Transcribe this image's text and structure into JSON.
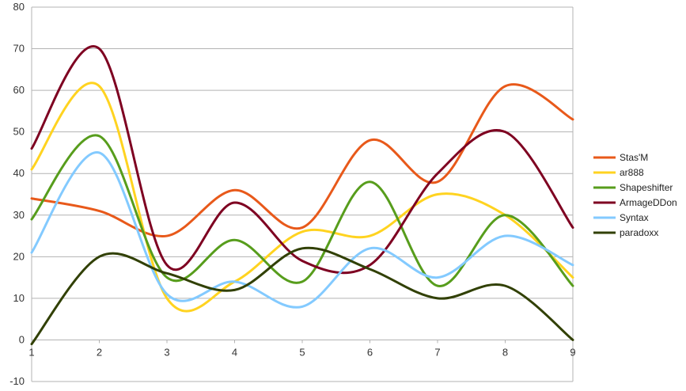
{
  "chart_data": {
    "type": "line",
    "x": [
      1,
      2,
      3,
      4,
      5,
      6,
      7,
      8,
      9
    ],
    "xlim": [
      1,
      9
    ],
    "ylim": [
      -10,
      80
    ],
    "y_ticks": [
      -10,
      0,
      10,
      20,
      30,
      40,
      50,
      60,
      70,
      80
    ],
    "x_ticks": [
      1,
      2,
      3,
      4,
      5,
      6,
      7,
      8,
      9
    ],
    "grid": "horizontal",
    "legend_position": "right",
    "smooth": true,
    "series": [
      {
        "name": "Stas'M",
        "color": "#e8591a",
        "values": [
          34,
          31,
          25,
          36,
          27,
          48,
          38,
          61,
          53
        ]
      },
      {
        "name": "ar888",
        "color": "#ffd320",
        "values": [
          41,
          61,
          10,
          14,
          26,
          25,
          35,
          30,
          15
        ]
      },
      {
        "name": "Shapeshifter",
        "color": "#579d1c",
        "values": [
          29,
          49,
          15,
          24,
          14,
          38,
          13,
          30,
          13
        ]
      },
      {
        "name": "ArmageDDon",
        "color": "#7e0021",
        "values": [
          46,
          70,
          18,
          33,
          19,
          18,
          40,
          50,
          27
        ]
      },
      {
        "name": "Syntax",
        "color": "#83caff",
        "values": [
          21,
          45,
          11,
          14,
          8,
          22,
          15,
          25,
          18
        ]
      },
      {
        "name": "paradoxx",
        "color": "#314004",
        "values": [
          -1,
          20,
          16,
          12,
          22,
          17,
          10,
          13,
          0
        ]
      }
    ]
  }
}
